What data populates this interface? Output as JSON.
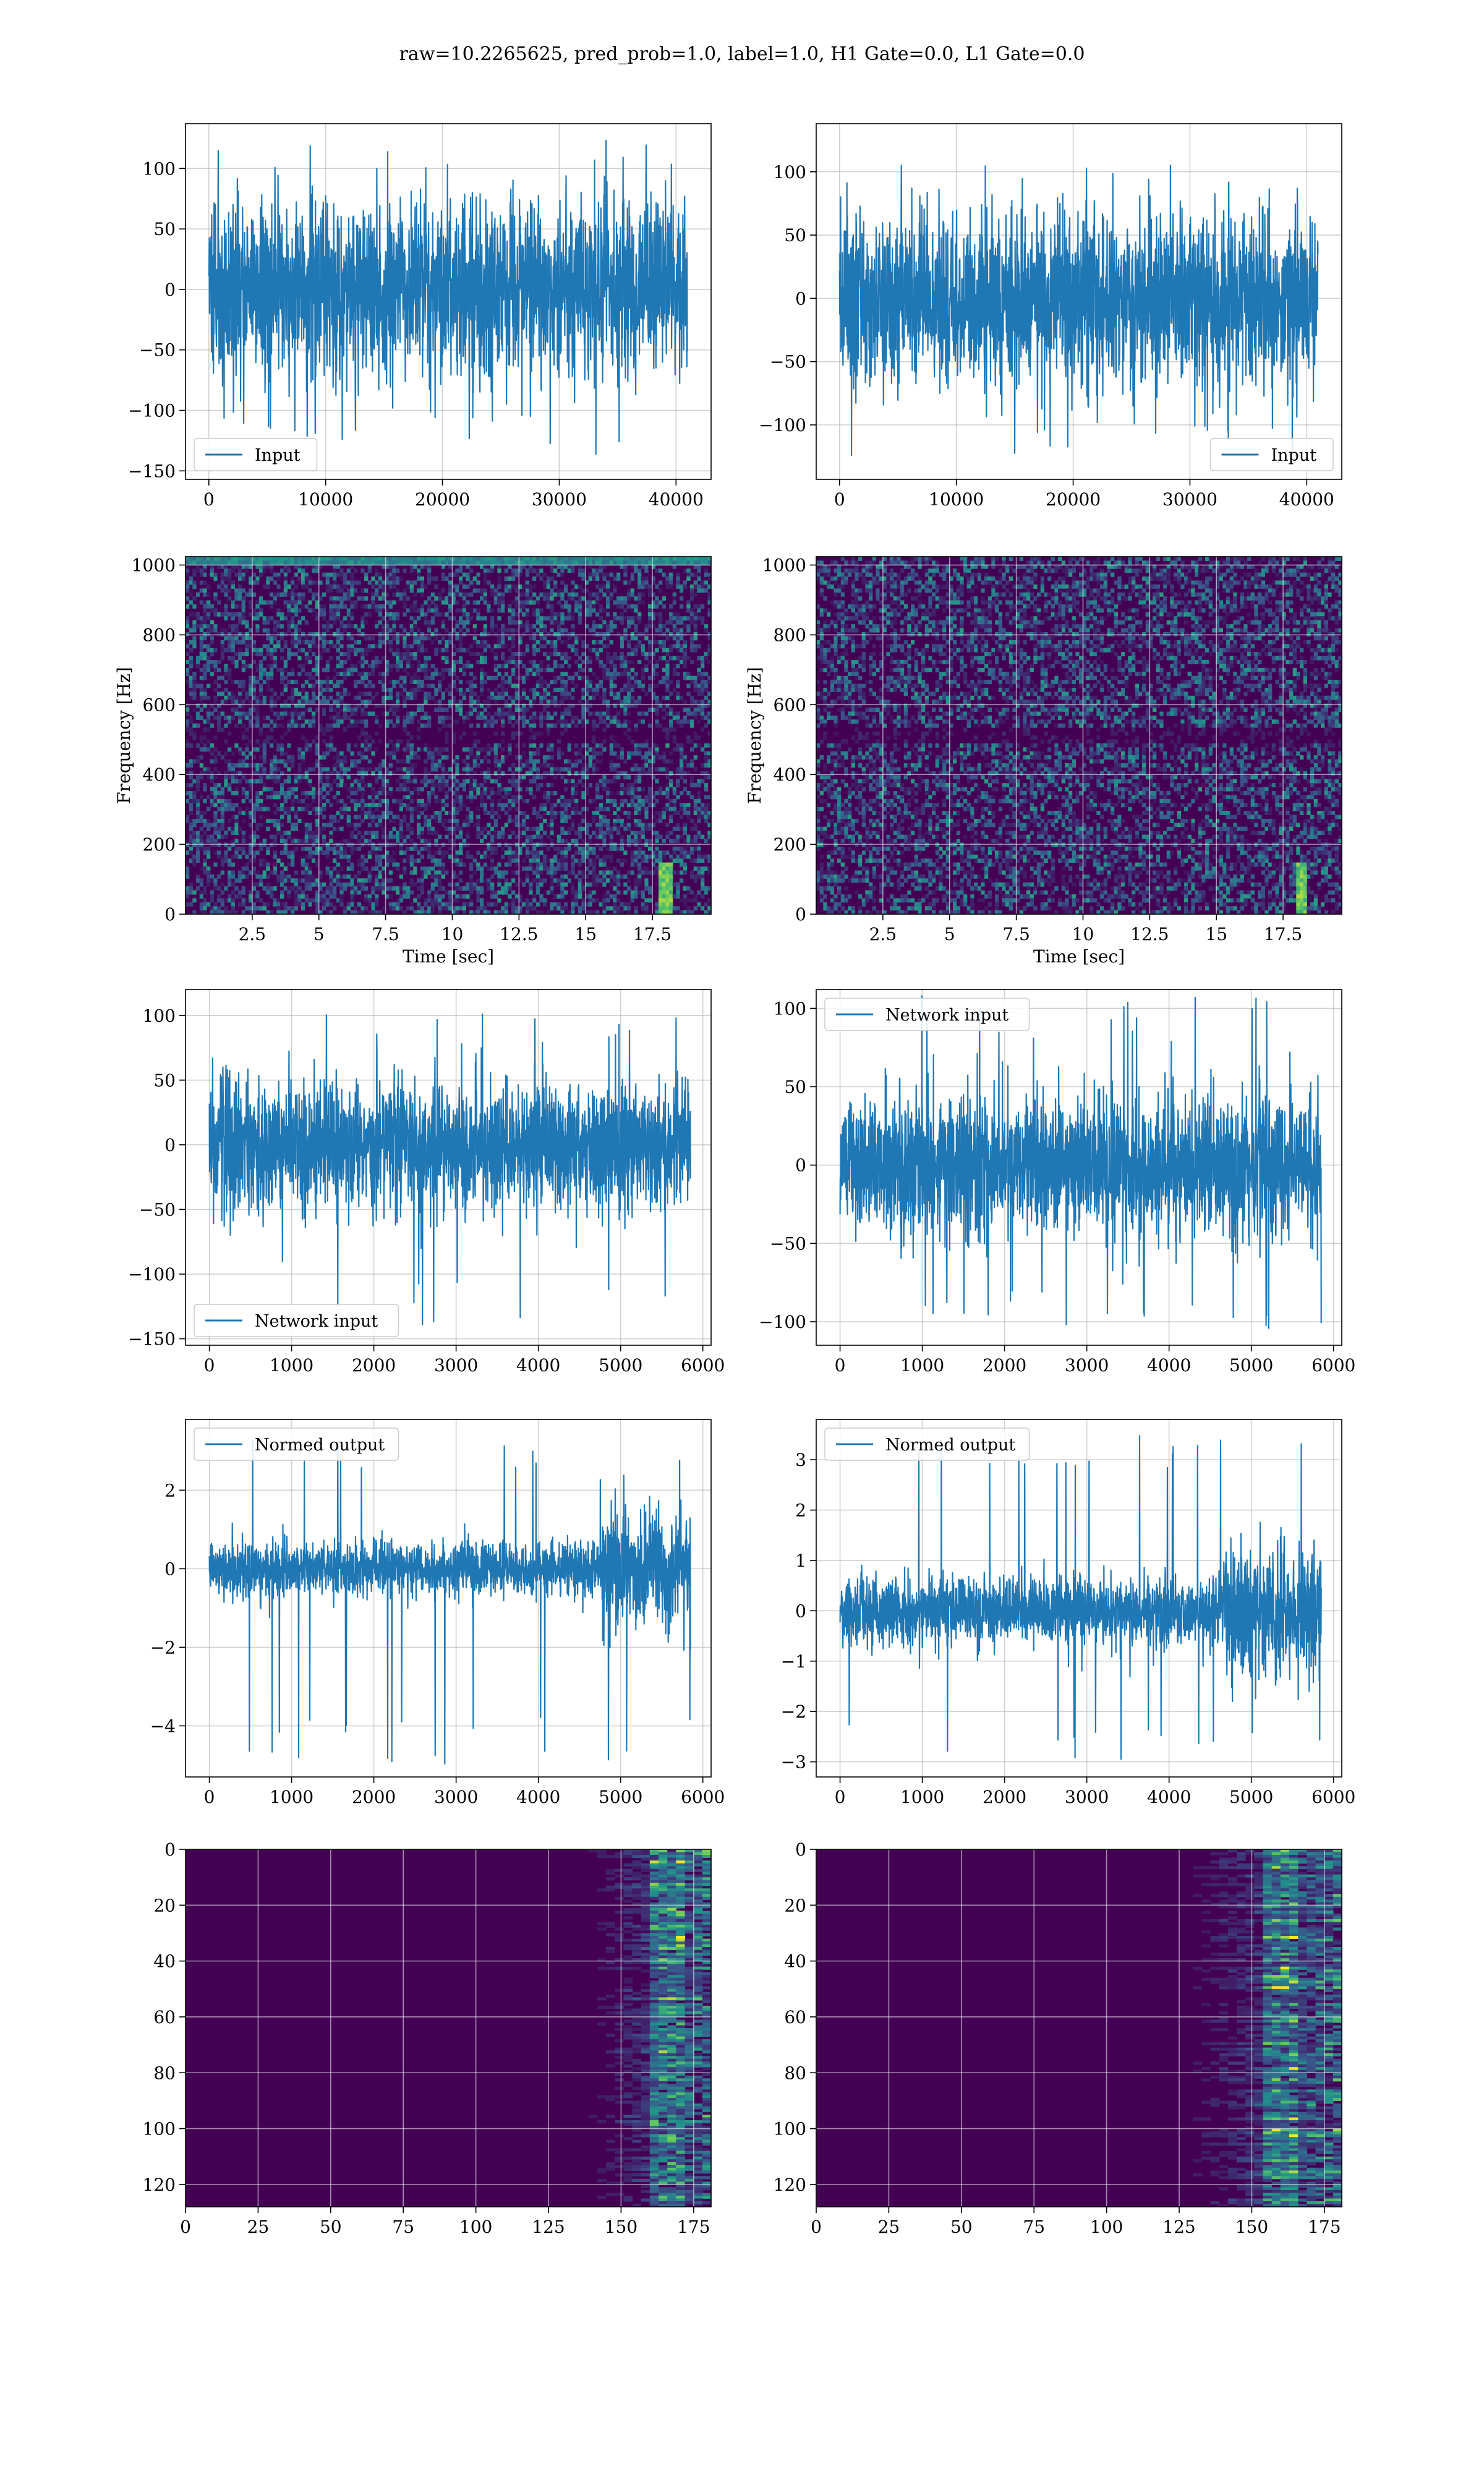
{
  "figure": {
    "suptitle": "raw=10.2265625, pred_prob=1.0, label=1.0, H1 Gate=0.0, L1 Gate=0.0"
  },
  "colors": {
    "line": "#1f77b4",
    "grid": "#b0b0b0",
    "viridis_dark": "#440154",
    "viridis_blue": "#3b528b",
    "viridis_teal": "#21918c",
    "viridis_green": "#5ec962",
    "viridis_yellow": "#fde725"
  },
  "chart_data": [
    {
      "id": "r1c1",
      "type": "line",
      "legend": [
        "Input"
      ],
      "legend_loc": "lower-left",
      "xlim": [
        -2000,
        43000
      ],
      "ylim": [
        -157,
        137
      ],
      "xticks": [
        0,
        10000,
        20000,
        30000,
        40000
      ],
      "yticks": [
        -150,
        -100,
        -50,
        0,
        50,
        100
      ],
      "xlabel": "",
      "ylabel": "",
      "grid": true,
      "series": [
        {
          "name": "Input",
          "x_range": [
            0,
            40960
          ],
          "envelope_lower": -65,
          "envelope_upper": 65,
          "peak_min": -140,
          "peak_max": 125
        }
      ]
    },
    {
      "id": "r1c2",
      "type": "line",
      "legend": [
        "Input"
      ],
      "legend_loc": "lower-right",
      "xlim": [
        -2000,
        43000
      ],
      "ylim": [
        -143,
        138
      ],
      "xticks": [
        0,
        10000,
        20000,
        30000,
        40000
      ],
      "yticks": [
        -100,
        -50,
        0,
        50,
        100
      ],
      "xlabel": "",
      "ylabel": "",
      "grid": true,
      "series": [
        {
          "name": "Input",
          "x_range": [
            0,
            40960
          ],
          "envelope_lower": -60,
          "envelope_upper": 60,
          "peak_min": -130,
          "peak_max": 105
        }
      ]
    },
    {
      "id": "r2c1",
      "type": "heatmap",
      "xlim": [
        0,
        19.7
      ],
      "ylim": [
        0,
        1024
      ],
      "xticks": [
        2.5,
        5.0,
        7.5,
        10.0,
        12.5,
        15.0,
        17.5
      ],
      "yticks": [
        0,
        200,
        400,
        600,
        800,
        1000
      ],
      "xlabel": "Time [sec]",
      "ylabel": "Frequency [Hz]",
      "grid": true,
      "colormap": "viridis",
      "features": {
        "dark_band_hz": 512,
        "bright_top_hz": 1015,
        "hotspot_time": 18.0,
        "hotspot_freq": 60
      }
    },
    {
      "id": "r2c2",
      "type": "heatmap",
      "xlim": [
        0,
        19.7
      ],
      "ylim": [
        0,
        1024
      ],
      "xticks": [
        2.5,
        5.0,
        7.5,
        10.0,
        12.5,
        15.0,
        17.5
      ],
      "yticks": [
        0,
        200,
        400,
        600,
        800,
        1000
      ],
      "xlabel": "Time [sec]",
      "ylabel": "Frequency [Hz]",
      "grid": true,
      "colormap": "viridis",
      "features": {
        "dark_band_hz": 512,
        "bright_top_hz": null,
        "hotspot_time": 18.2,
        "hotspot_freq": 60
      }
    },
    {
      "id": "r3c1",
      "type": "line",
      "legend": [
        "Network input"
      ],
      "legend_loc": "lower-left",
      "xlim": [
        -290,
        6100
      ],
      "ylim": [
        -155,
        120
      ],
      "xticks": [
        0,
        1000,
        2000,
        3000,
        4000,
        5000,
        6000
      ],
      "yticks": [
        -150,
        -100,
        -50,
        0,
        50,
        100
      ],
      "xlabel": "",
      "ylabel": "",
      "grid": true,
      "series": [
        {
          "name": "Network input",
          "x_range": [
            0,
            5850
          ],
          "envelope_lower": -45,
          "envelope_upper": 45,
          "peak_min": -140,
          "peak_max": 103
        }
      ]
    },
    {
      "id": "r3c2",
      "type": "line",
      "legend": [
        "Network input"
      ],
      "legend_loc": "upper-left",
      "xlim": [
        -290,
        6100
      ],
      "ylim": [
        -115,
        112
      ],
      "xticks": [
        0,
        1000,
        2000,
        3000,
        4000,
        5000,
        6000
      ],
      "yticks": [
        -100,
        -50,
        0,
        50,
        100
      ],
      "xlabel": "",
      "ylabel": "",
      "grid": true,
      "series": [
        {
          "name": "Network input",
          "x_range": [
            0,
            5850
          ],
          "envelope_lower": -40,
          "envelope_upper": 40,
          "peak_min": -105,
          "peak_max": 108
        }
      ]
    },
    {
      "id": "r4c1",
      "type": "line",
      "legend": [
        "Normed output"
      ],
      "legend_loc": "upper-left",
      "xlim": [
        -290,
        6100
      ],
      "ylim": [
        -5.3,
        3.8
      ],
      "xticks": [
        0,
        1000,
        2000,
        3000,
        4000,
        5000,
        6000
      ],
      "yticks": [
        -4,
        -2,
        0,
        2
      ],
      "xlabel": "",
      "ylabel": "",
      "grid": true,
      "series": [
        {
          "name": "Normed output",
          "x_range": [
            0,
            5850
          ],
          "envelope_lower": -0.6,
          "envelope_upper": 0.6,
          "burst_start": 4750,
          "burst_amp": 2.2,
          "peak_min": -5.0,
          "peak_max": 3.4
        }
      ]
    },
    {
      "id": "r4c2",
      "type": "line",
      "legend": [
        "Normed output"
      ],
      "legend_loc": "upper-left",
      "xlim": [
        -290,
        6100
      ],
      "ylim": [
        -3.3,
        3.8
      ],
      "xticks": [
        0,
        1000,
        2000,
        3000,
        4000,
        5000,
        6000
      ],
      "yticks": [
        -3,
        -2,
        -1,
        0,
        1,
        2,
        3
      ],
      "xlabel": "",
      "ylabel": "",
      "grid": true,
      "series": [
        {
          "name": "Normed output",
          "x_range": [
            0,
            5850
          ],
          "envelope_lower": -0.6,
          "envelope_upper": 0.6,
          "burst_start": 4650,
          "burst_amp": 2.0,
          "peak_min": -3.0,
          "peak_max": 3.6
        }
      ]
    },
    {
      "id": "r5c1",
      "type": "heatmap",
      "xlim": [
        0,
        181
      ],
      "ylim": [
        128,
        0
      ],
      "xticks": [
        0,
        25,
        50,
        75,
        100,
        125,
        150,
        175
      ],
      "yticks": [
        0,
        20,
        40,
        60,
        80,
        100,
        120
      ],
      "xlabel": "",
      "ylabel": "",
      "grid": true,
      "colormap": "viridis",
      "features": {
        "activity_start": 125,
        "activity_peak": 165
      }
    },
    {
      "id": "r5c2",
      "type": "heatmap",
      "xlim": [
        0,
        181
      ],
      "ylim": [
        128,
        0
      ],
      "xticks": [
        0,
        25,
        50,
        75,
        100,
        125,
        150,
        175
      ],
      "yticks": [
        0,
        20,
        40,
        60,
        80,
        100,
        120
      ],
      "xlabel": "",
      "ylabel": "",
      "grid": true,
      "colormap": "viridis",
      "features": {
        "activity_start": 110,
        "activity_peak": 160
      }
    }
  ]
}
